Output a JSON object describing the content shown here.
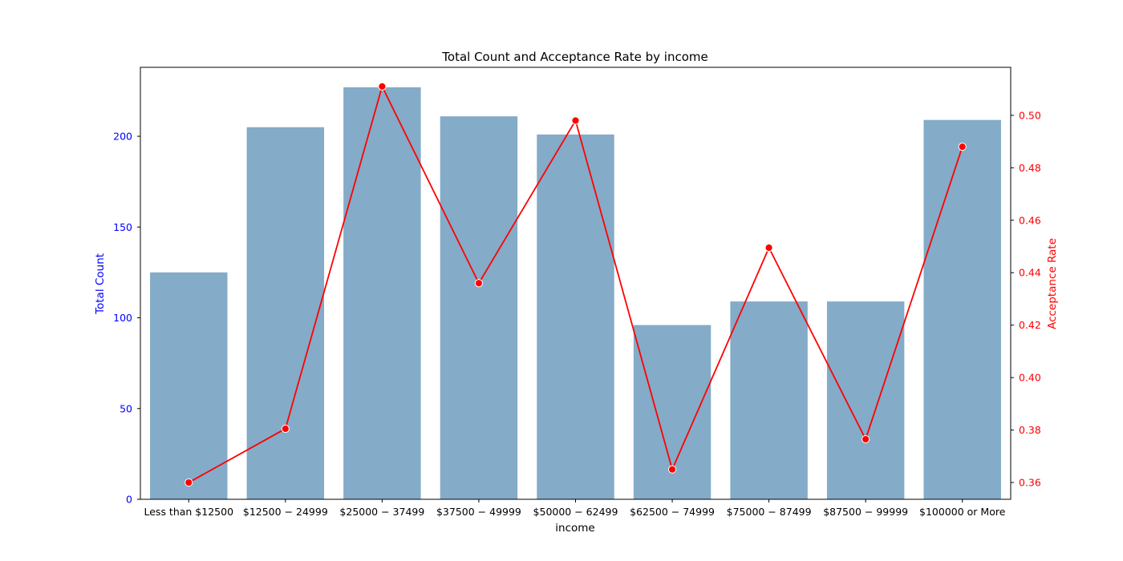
{
  "chart_data": {
    "type": "bar",
    "title": "Total Count and Acceptance Rate by income",
    "xlabel": "income",
    "categories": [
      "Less than $12500",
      "$12500 - $24999",
      "$25000 - $37499",
      "$37500 - $49999",
      "$50000 - $62499",
      "$62500 - $74999",
      "$75000 - $87499",
      "$87500 - $99999",
      "$100000 or More"
    ],
    "tick_labels_rendered": [
      "Less than $12500",
      "$12500 − 24999",
      "$25000 − 37499",
      "$37500 − 49999",
      "$50000 − 62499",
      "$62500 − 74999",
      "$75000 − 87499",
      "$87500 − 99999",
      "$100000 or More"
    ],
    "left_axis": {
      "label": "Total Count",
      "color": "#0000ff",
      "ylim": [
        0,
        238
      ],
      "ticks": [
        0,
        50,
        100,
        150,
        200
      ]
    },
    "right_axis": {
      "label": "Acceptance Rate",
      "color": "#ff0000",
      "ylim": [
        0.3536,
        0.5183
      ],
      "ticks": [
        0.36,
        0.38,
        0.4,
        0.42,
        0.44,
        0.46,
        0.48,
        0.5
      ],
      "tick_labels": [
        "0.36",
        "0.38",
        "0.40",
        "0.42",
        "0.44",
        "0.46",
        "0.48",
        "0.50"
      ]
    },
    "series": [
      {
        "kind": "bar",
        "axis": "left",
        "color": "#84abc8",
        "values": [
          125,
          205,
          227,
          211,
          201,
          96,
          109,
          109,
          209
        ]
      },
      {
        "kind": "line",
        "axis": "right",
        "color": "#ff0000",
        "marker": "circle",
        "values": [
          0.36,
          0.3805,
          0.511,
          0.436,
          0.498,
          0.365,
          0.4495,
          0.3765,
          0.488
        ]
      }
    ],
    "grid": false,
    "legend": "none"
  }
}
